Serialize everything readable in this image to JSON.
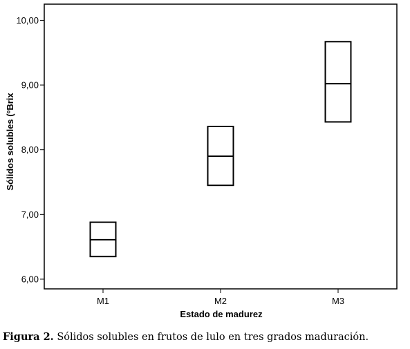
{
  "chart_data": {
    "type": "boxplot",
    "xlabel": "Estado de madurez",
    "ylabel": "Sólidos solubles (ºBrix",
    "categories": [
      "M1",
      "M2",
      "M3"
    ],
    "ylim": [
      5.85,
      10.25
    ],
    "yticks": [
      "6,00",
      "7,00",
      "8,00",
      "9,00",
      "10,00"
    ],
    "ytick_values": [
      6,
      7,
      8,
      9,
      10
    ],
    "boxes": [
      {
        "category": "M1",
        "q1": 6.35,
        "median": 6.61,
        "q3": 6.88
      },
      {
        "category": "M2",
        "q1": 7.45,
        "median": 7.9,
        "q3": 8.36
      },
      {
        "category": "M3",
        "q1": 8.43,
        "median": 9.02,
        "q3": 9.67
      }
    ],
    "grid": false,
    "legend": "none"
  },
  "caption": {
    "label": "Figura 2.",
    "text": " Sólidos solubles en frutos de lulo en tres grados maduración."
  }
}
